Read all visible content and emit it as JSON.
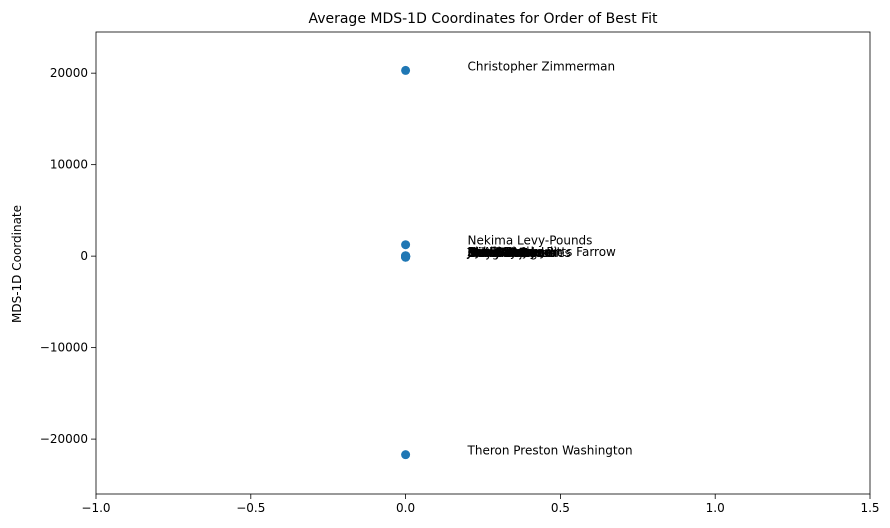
{
  "chart_data": {
    "type": "scatter",
    "title": "Average MDS-1D Coordinates for Order of Best Fit",
    "xlabel": "",
    "ylabel": "MDS-1D Coordinate",
    "xlim": [
      -1.0,
      1.5
    ],
    "ylim": [
      -26000,
      24500
    ],
    "xticks": [
      -1.0,
      -0.5,
      0.0,
      0.5,
      1.0,
      1.5
    ],
    "xtick_labels": [
      "−1.0",
      "−0.5",
      "0.0",
      "0.5",
      "1.0",
      "1.5"
    ],
    "yticks": [
      -20000,
      -10000,
      0,
      10000,
      20000
    ],
    "ytick_labels": [
      "−20000",
      "−10000",
      "0",
      "10000",
      "20000"
    ],
    "grid": false,
    "marker_color": "#1f77b4",
    "points": [
      {
        "x": 0.0,
        "y": 20300,
        "label": "Christopher Zimmerman"
      },
      {
        "x": 0.0,
        "y": 1250,
        "label": "Nekima Levy-Pounds"
      },
      {
        "x": 0.0,
        "y": 30,
        "label": "Sheila Nezhad"
      },
      {
        "x": 0.0,
        "y": 20,
        "label": "Kate Knuth"
      },
      {
        "x": 0.0,
        "y": 10,
        "label": "Jacob Frey"
      },
      {
        "x": 0.0,
        "y": 0,
        "label": "AJ Awed"
      },
      {
        "x": 0.0,
        "y": -10,
        "label": "Bob Carney Jr"
      },
      {
        "x": 0.0,
        "y": -20,
        "label": "Clint Conner"
      },
      {
        "x": 0.0,
        "y": -30,
        "label": "Jerrell Perry"
      },
      {
        "x": 0.0,
        "y": -40,
        "label": "Paul E. Johnson"
      },
      {
        "x": 0.0,
        "y": -50,
        "label": "Kevin Ward"
      },
      {
        "x": 0.0,
        "y": -60,
        "label": "Mike Winter"
      },
      {
        "x": 0.0,
        "y": -70,
        "label": "Marcus Harcus"
      },
      {
        "x": 0.0,
        "y": -80,
        "label": "Laverne Turner"
      },
      {
        "x": 0.0,
        "y": -90,
        "label": "Darryl Robinson"
      },
      {
        "x": 0.0,
        "y": -100,
        "label": "Troy Benjegerdes"
      },
      {
        "x": 0.0,
        "y": -110,
        "label": "Doug Nelson"
      },
      {
        "x": 0.0,
        "y": -120,
        "label": "Mark Globus"
      },
      {
        "x": 0.0,
        "y": 40,
        "label": "Ian Shannon Pitts Farrow"
      },
      {
        "x": 0.0,
        "y": -21700,
        "label": "Theron Preston Washington"
      }
    ]
  }
}
